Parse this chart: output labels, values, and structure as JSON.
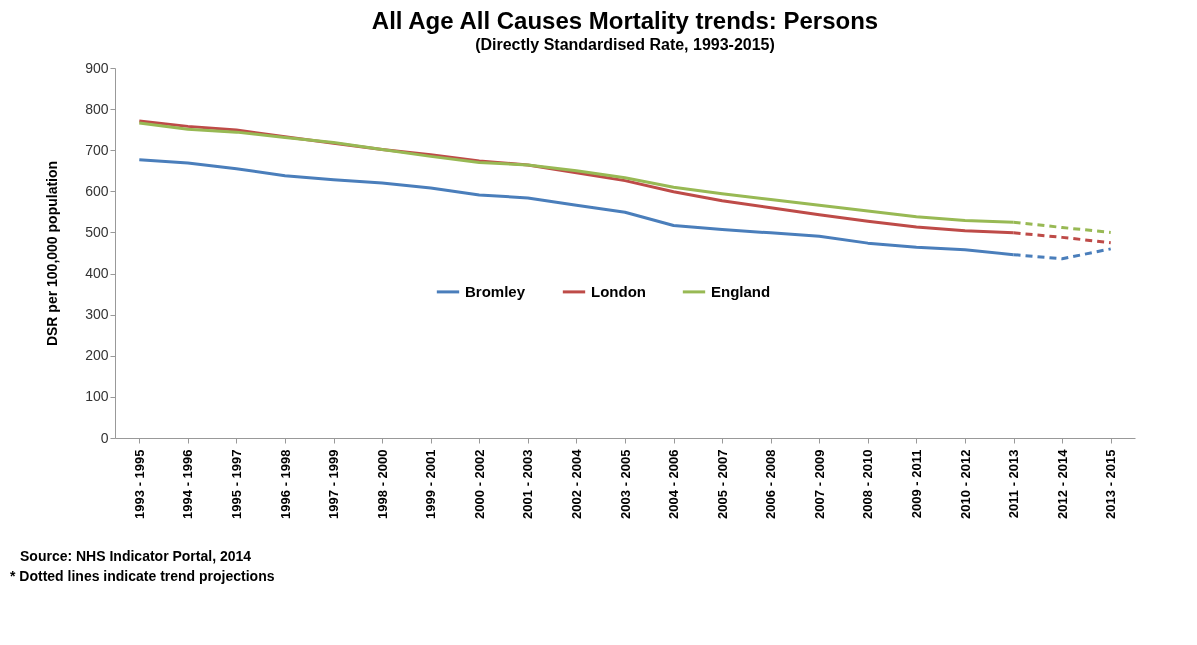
{
  "chart_data": {
    "type": "line",
    "title": "All Age All Causes Mortality trends: Persons",
    "subtitle": "(Directly Standardised Rate, 1993-2015)",
    "ylabel": "DSR per 100,000 population",
    "categories": [
      "1993 - 1995",
      "1994 - 1996",
      "1995 - 1997",
      "1996 - 1998",
      "1997 - 1999",
      "1998 - 2000",
      "1999 - 2001",
      "2000 - 2002",
      "2001 - 2003",
      "2002 - 2004",
      "2003 - 2005",
      "2004 - 2006",
      "2005 - 2007",
      "2006 - 2008",
      "2007 - 2009",
      "2008 - 2010",
      "2009 - 2011",
      "2010 - 2012",
      "2011 - 2013",
      "2012 - 2014",
      "2013 - 2015"
    ],
    "series": [
      {
        "name": "Bromley",
        "color": "#4a7ebb",
        "values": [
          677,
          669,
          655,
          638,
          628,
          620,
          608,
          591,
          584,
          566,
          549,
          517,
          507,
          499,
          491,
          474,
          464,
          458,
          446,
          null,
          null
        ]
      },
      {
        "name": "London",
        "color": "#be4b48",
        "values": [
          771,
          758,
          749,
          733,
          717,
          702,
          689,
          674,
          664,
          645,
          626,
          599,
          577,
          560,
          543,
          527,
          513,
          504,
          499,
          null,
          null
        ]
      },
      {
        "name": "England",
        "color": "#98b954",
        "values": [
          766,
          751,
          744,
          731,
          719,
          702,
          685,
          670,
          664,
          650,
          633,
          610,
          594,
          580,
          566,
          552,
          538,
          529,
          525,
          null,
          null
        ]
      },
      {
        "color": "#4a7ebb",
        "line_style": "dashed",
        "values": [
          null,
          null,
          null,
          null,
          null,
          null,
          null,
          null,
          null,
          null,
          null,
          null,
          null,
          null,
          null,
          null,
          null,
          null,
          446,
          436,
          460
        ]
      },
      {
        "color": "#be4b48",
        "line_style": "dashed",
        "values": [
          null,
          null,
          null,
          null,
          null,
          null,
          null,
          null,
          null,
          null,
          null,
          null,
          null,
          null,
          null,
          null,
          null,
          null,
          499,
          488,
          475
        ]
      },
      {
        "color": "#98b954",
        "line_style": "dashed",
        "values": [
          null,
          null,
          null,
          null,
          null,
          null,
          null,
          null,
          null,
          null,
          null,
          null,
          null,
          null,
          null,
          null,
          null,
          null,
          525,
          512,
          500
        ]
      }
    ],
    "ylim": [
      0,
      900
    ],
    "yticks": [
      0,
      100,
      200,
      300,
      400,
      500,
      600,
      700,
      800,
      900
    ],
    "grid": false,
    "legend": "center",
    "line_style": "solid",
    "marker": "none",
    "annotations": [
      "Source: NHS Indicator Portal, 2014",
      "* Dotted lines indicate trend projections"
    ]
  }
}
